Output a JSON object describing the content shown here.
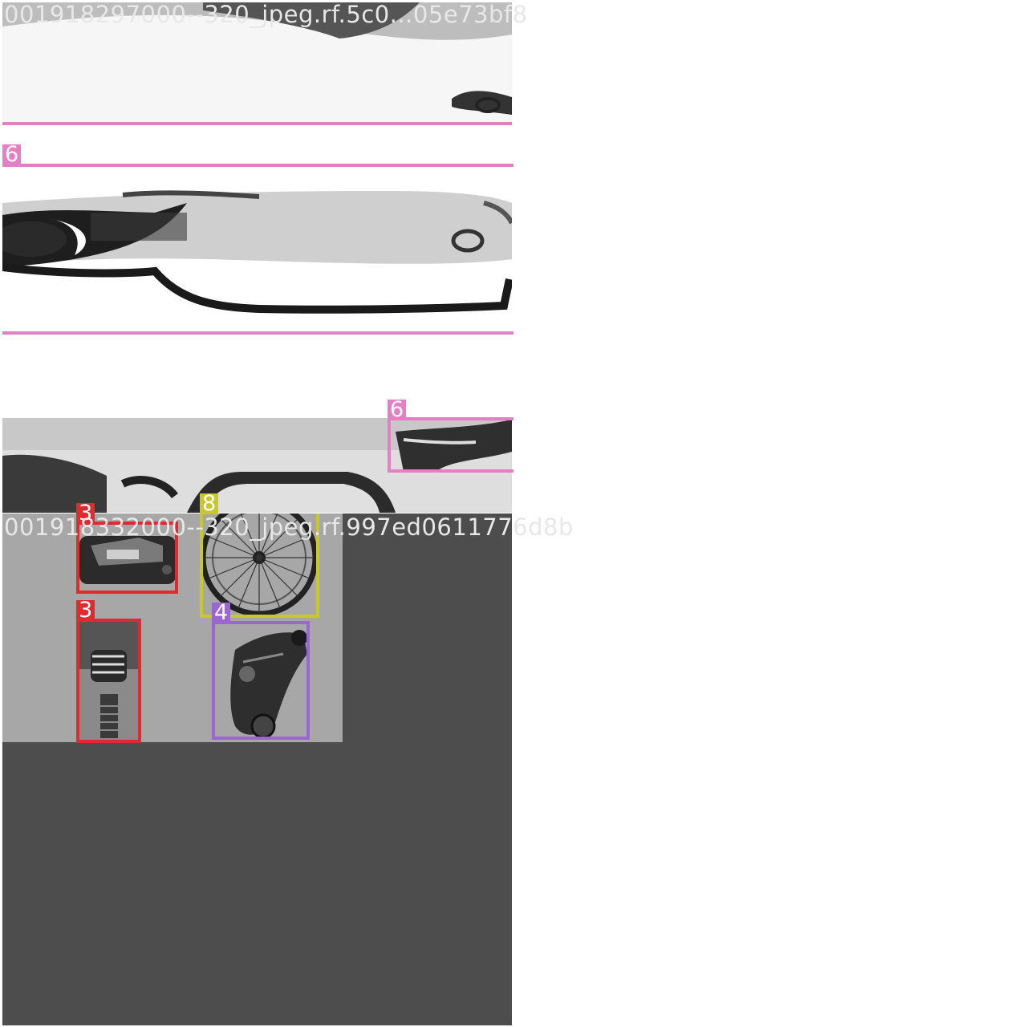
{
  "class_colors": {
    "3": "#e02a2f",
    "4": "#9a66cf",
    "6": "#e57ec4",
    "8": "#c8c82c"
  },
  "tiles": [
    {
      "filename": "001918297000--320_jpeg.rf.5c0...05e73bf8",
      "boxes": [
        {
          "class": "6"
        },
        {
          "class": "6"
        }
      ]
    },
    {
      "filename": "001918332000--320_jpeg.rf.997ed0611776d8b",
      "boxes": [
        {
          "class": "3"
        },
        {
          "class": "8"
        },
        {
          "class": "3"
        },
        {
          "class": "4"
        }
      ]
    }
  ]
}
